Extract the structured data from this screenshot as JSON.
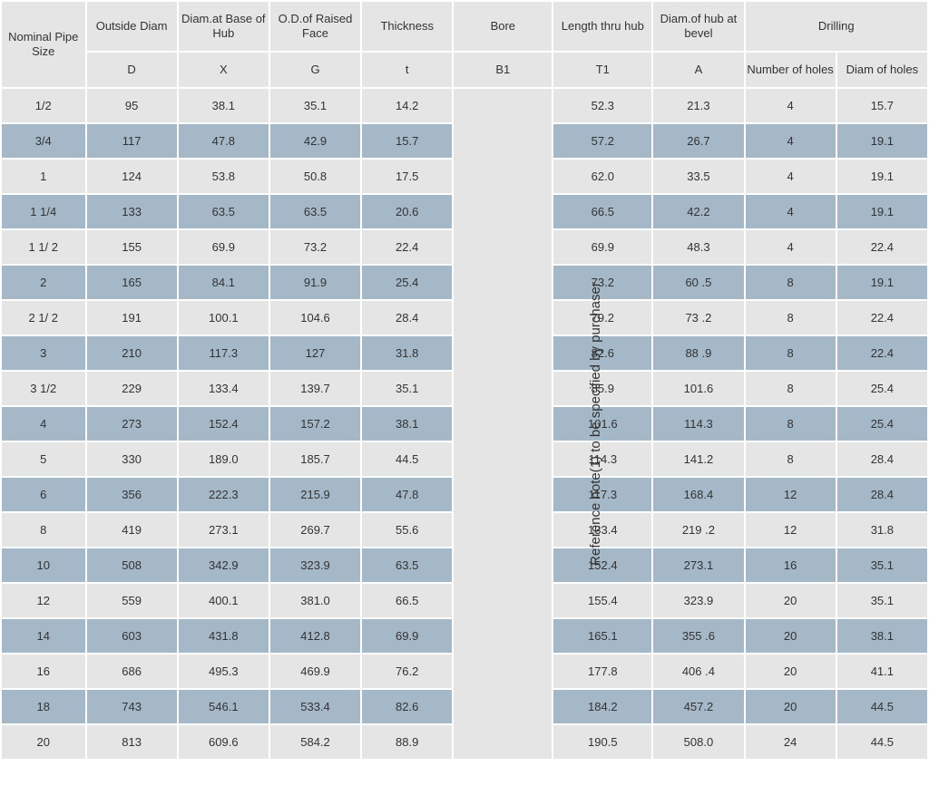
{
  "table": {
    "colors": {
      "light_row_bg": "#e5e5e5",
      "dark_row_bg": "#a5b8c8",
      "header_bg": "#e5e5e5",
      "border": "#ffffff",
      "text": "#333333"
    },
    "header": {
      "row1": {
        "nominal": "Nominal Pipe Size",
        "outside_diam": "Outside Diam",
        "diam_base_hub": "Diam.at Base of Hub",
        "od_raised_face": "O.D.of Raised Face",
        "thickness": "Thickness",
        "bore": "Bore",
        "length_thru_hub": "Length  thru hub",
        "diam_hub_bevel": "Diam.of hub at bevel",
        "drilling": "Drilling"
      },
      "row2": {
        "D": "D",
        "X": "X",
        "G": "G",
        "t": "t",
        "B1": "B1",
        "T1": "T1",
        "A": "A",
        "num_holes": "Number of holes",
        "diam_holes": "Diam of holes"
      }
    },
    "bore_note": "Reference note(1) to be specified by purchaser",
    "rows": [
      {
        "nominal": "1/2",
        "D": "95",
        "X": "38.1",
        "G": "35.1",
        "t": "14.2",
        "T1": "52.3",
        "A": "21.3",
        "holes": "4",
        "hdiam": "15.7"
      },
      {
        "nominal": "3/4",
        "D": "117",
        "X": "47.8",
        "G": "42.9",
        "t": "15.7",
        "T1": "57.2",
        "A": "26.7",
        "holes": "4",
        "hdiam": "19.1"
      },
      {
        "nominal": "1",
        "D": "124",
        "X": "53.8",
        "G": "50.8",
        "t": "17.5",
        "T1": "62.0",
        "A": "33.5",
        "holes": "4",
        "hdiam": "19.1"
      },
      {
        "nominal": "1 1/4",
        "D": "133",
        "X": "63.5",
        "G": "63.5",
        "t": "20.6",
        "T1": "66.5",
        "A": "42.2",
        "holes": "4",
        "hdiam": "19.1"
      },
      {
        "nominal": "1 1/ 2",
        "D": "155",
        "X": "69.9",
        "G": "73.2",
        "t": "22.4",
        "T1": "69.9",
        "A": "48.3",
        "holes": "4",
        "hdiam": "22.4"
      },
      {
        "nominal": "2",
        "D": "165",
        "X": "84.1",
        "G": "91.9",
        "t": "25.4",
        "T1": "73.2",
        "A": "60 .5",
        "holes": "8",
        "hdiam": "19.1"
      },
      {
        "nominal": "2 1/ 2",
        "D": "191",
        "X": "100.1",
        "G": "104.6",
        "t": "28.4",
        "T1": "79.2",
        "A": "73 .2",
        "holes": "8",
        "hdiam": "22.4"
      },
      {
        "nominal": "3",
        "D": "210",
        "X": "117.3",
        "G": "127",
        "t": "31.8",
        "T1": "82.6",
        "A": "88 .9",
        "holes": "8",
        "hdiam": "22.4"
      },
      {
        "nominal": "3 1/2",
        "D": "229",
        "X": "133.4",
        "G": "139.7",
        "t": "35.1",
        "T1": "85.9",
        "A": "101.6",
        "holes": "8",
        "hdiam": "25.4"
      },
      {
        "nominal": "4",
        "D": "273",
        "X": "152.4",
        "G": "157.2",
        "t": "38.1",
        "T1": "101.6",
        "A": "114.3",
        "holes": "8",
        "hdiam": "25.4"
      },
      {
        "nominal": "5",
        "D": "330",
        "X": "189.0",
        "G": "185.7",
        "t": "44.5",
        "T1": "114.3",
        "A": "141.2",
        "holes": "8",
        "hdiam": "28.4"
      },
      {
        "nominal": "6",
        "D": "356",
        "X": "222.3",
        "G": "215.9",
        "t": "47.8",
        "T1": "117.3",
        "A": "168.4",
        "holes": "12",
        "hdiam": "28.4"
      },
      {
        "nominal": "8",
        "D": "419",
        "X": "273.1",
        "G": "269.7",
        "t": "55.6",
        "T1": "133.4",
        "A": "219 .2",
        "holes": "12",
        "hdiam": "31.8"
      },
      {
        "nominal": "10",
        "D": "508",
        "X": "342.9",
        "G": "323.9",
        "t": "63.5",
        "T1": "152.4",
        "A": "273.1",
        "holes": "16",
        "hdiam": "35.1"
      },
      {
        "nominal": "12",
        "D": "559",
        "X": "400.1",
        "G": "381.0",
        "t": "66.5",
        "T1": "155.4",
        "A": "323.9",
        "holes": "20",
        "hdiam": "35.1"
      },
      {
        "nominal": "14",
        "D": "603",
        "X": "431.8",
        "G": "412.8",
        "t": "69.9",
        "T1": "165.1",
        "A": "355 .6",
        "holes": "20",
        "hdiam": "38.1"
      },
      {
        "nominal": "16",
        "D": "686",
        "X": "495.3",
        "G": "469.9",
        "t": "76.2",
        "T1": "177.8",
        "A": "406 .4",
        "holes": "20",
        "hdiam": "41.1"
      },
      {
        "nominal": "18",
        "D": "743",
        "X": "546.1",
        "G": "533.4",
        "t": "82.6",
        "T1": "184.2",
        "A": "457.2",
        "holes": "20",
        "hdiam": "44.5"
      },
      {
        "nominal": "20",
        "D": "813",
        "X": "609.6",
        "G": "584.2",
        "t": "88.9",
        "T1": "190.5",
        "A": "508.0",
        "holes": "24",
        "hdiam": "44.5"
      }
    ]
  }
}
